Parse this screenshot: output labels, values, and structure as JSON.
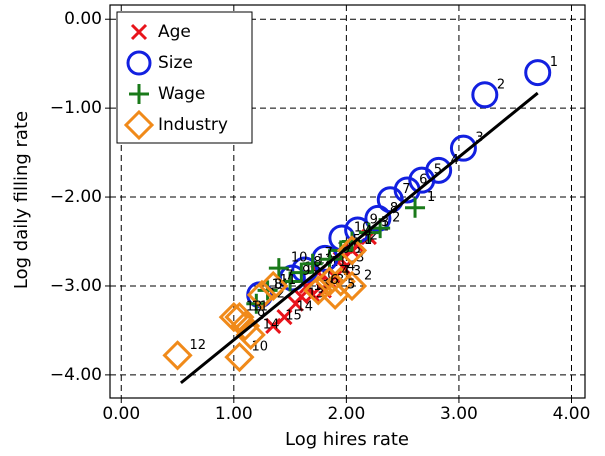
{
  "chart_data": {
    "type": "scatter",
    "x_label": "Log hires rate",
    "y_label": "Log daily filling rate",
    "xlim": [
      -0.1,
      4.12
    ],
    "ylim": [
      -4.26,
      0.16
    ],
    "xticks": [
      {
        "value": 0,
        "label": "0.00"
      },
      {
        "value": 1,
        "label": "1.00"
      },
      {
        "value": 2,
        "label": "2.00"
      },
      {
        "value": 3,
        "label": "3.00"
      },
      {
        "value": 4,
        "label": "4.00"
      }
    ],
    "yticks": [
      {
        "value": 0,
        "label": "0.00"
      },
      {
        "value": -1,
        "label": "−1.00"
      },
      {
        "value": -2,
        "label": "−2.00"
      },
      {
        "value": -3,
        "label": "−3.00"
      },
      {
        "value": -4,
        "label": "−4.00"
      }
    ],
    "grid": true,
    "legend": "upper-left",
    "series": [
      {
        "name": "Age",
        "marker": "x",
        "color": "#e8141b",
        "x": [
          2.2,
          2.1,
          1.98,
          1.9,
          1.95,
          2.05,
          1.85,
          1.8,
          1.7,
          1.65,
          1.75,
          1.6,
          1.55,
          1.45,
          1.35
        ],
        "y": [
          -2.45,
          -2.55,
          -2.8,
          -2.9,
          -2.7,
          -2.6,
          -2.95,
          -3.05,
          -3.1,
          -3.0,
          -2.85,
          -3.12,
          -3.2,
          -3.35,
          -3.45
        ],
        "labels": [
          "1",
          "2",
          "3",
          "4",
          "5",
          "6",
          "7",
          "8",
          "9",
          "10",
          "11",
          "12",
          "13",
          "14",
          "15"
        ]
      },
      {
        "name": "Size",
        "marker": "circle",
        "color": "#1220e0",
        "x": [
          3.7,
          3.23,
          3.04,
          2.82,
          2.67,
          2.54,
          2.39,
          2.28,
          2.1,
          1.96,
          1.81,
          1.63,
          1.52,
          1.23
        ],
        "y": [
          -0.6,
          -0.85,
          -1.45,
          -1.7,
          -1.81,
          -1.92,
          -2.03,
          -2.24,
          -2.37,
          -2.46,
          -2.69,
          -2.82,
          -2.91,
          -3.1
        ],
        "labels": [
          "1",
          "2",
          "3",
          "4",
          "5",
          "6",
          "7",
          "8",
          "9",
          "10",
          "11",
          "12",
          "13",
          "14"
        ]
      },
      {
        "name": "Wage",
        "marker": "plus",
        "color": "#1a7a1a",
        "x": [
          2.61,
          2.3,
          2.2,
          2.05,
          1.95,
          1.85,
          1.7,
          1.6,
          1.5,
          1.4,
          1.3,
          1.2
        ],
        "y": [
          -2.12,
          -2.35,
          -2.4,
          -2.5,
          -2.6,
          -2.7,
          -2.75,
          -2.85,
          -2.95,
          -2.8,
          -3.05,
          -3.2
        ],
        "labels": [
          "1",
          "2",
          "3",
          "4",
          "5",
          "6",
          "7",
          "8",
          "9",
          "10",
          "11",
          "12"
        ]
      },
      {
        "name": "Industry",
        "marker": "diamond",
        "color": "#f08a1a",
        "x": [
          2.05,
          2.05,
          1.95,
          1.85,
          1.9,
          1.75,
          1.35,
          1.25,
          1.1,
          1.05,
          1.05,
          0.5,
          1.0,
          1.15
        ],
        "y": [
          -2.6,
          -3.0,
          -2.95,
          -2.95,
          -3.1,
          -3.05,
          -3.0,
          -3.1,
          -3.45,
          -3.8,
          -3.35,
          -3.78,
          -3.35,
          -3.55
        ],
        "labels": [
          "1",
          "2",
          "3",
          "4",
          "5",
          "6",
          "7",
          "8",
          "9",
          "10",
          "11",
          "12",
          "13",
          "14"
        ]
      }
    ],
    "fit_line": {
      "color": "#000000",
      "x": [
        0.53,
        3.7
      ],
      "y": [
        -4.09,
        -0.83
      ]
    }
  }
}
